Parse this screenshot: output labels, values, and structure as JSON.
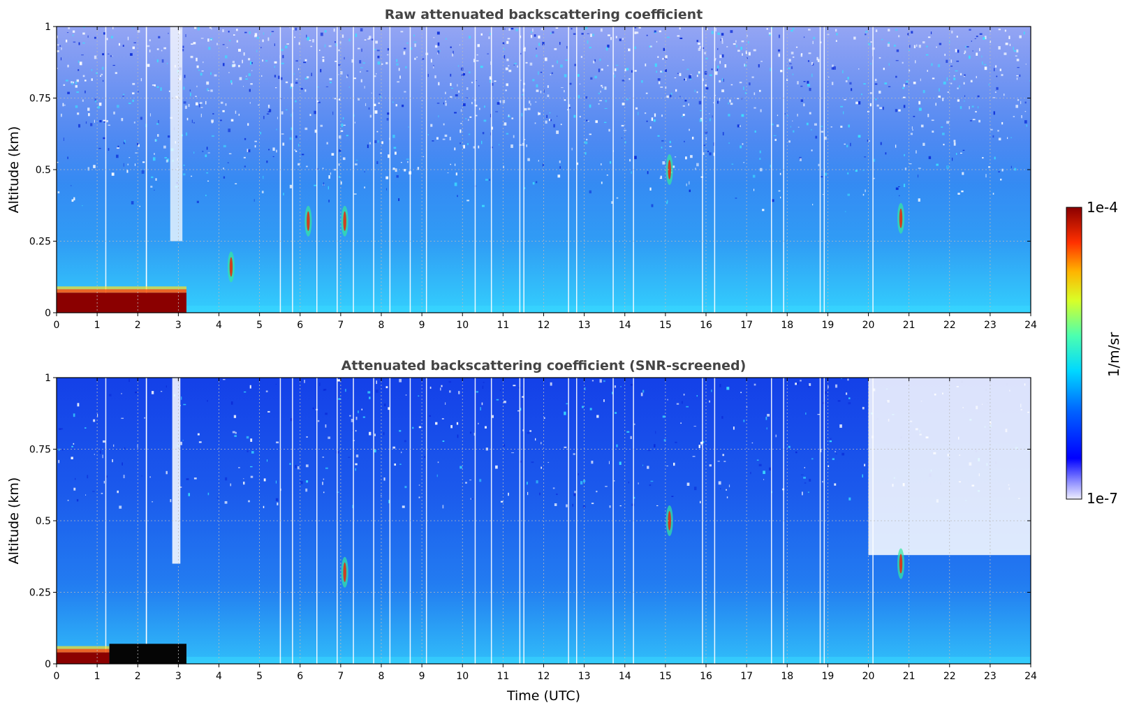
{
  "chart_data": [
    {
      "type": "heatmap",
      "title": "Raw attenuated backscattering coefficient",
      "xlabel": "",
      "ylabel": "Altitude (km)",
      "xlim": [
        0,
        24
      ],
      "ylim": [
        0,
        1
      ],
      "x_ticks": [
        "0",
        "1",
        "2",
        "3",
        "4",
        "5",
        "6",
        "7",
        "8",
        "9",
        "10",
        "11",
        "12",
        "13",
        "14",
        "15",
        "16",
        "17",
        "18",
        "19",
        "20",
        "21",
        "22",
        "23",
        "24"
      ],
      "y_ticks": [
        "0",
        "0.25",
        "0.5",
        "0.75",
        "1"
      ],
      "grid": true,
      "features": [
        {
          "x_range": [
            0,
            3.2
          ],
          "y_range": [
            0,
            0.07
          ],
          "level": "saturated"
        },
        {
          "x_range": [
            2.8,
            3.1
          ],
          "y_range": [
            0.25,
            1.0
          ],
          "level": "noise-white"
        },
        {
          "x": 15.1,
          "y": 0.5,
          "level": "high"
        },
        {
          "x": 20.8,
          "y": 0.33,
          "level": "high"
        },
        {
          "x": 7.1,
          "y": 0.32,
          "level": "high"
        },
        {
          "x": 6.2,
          "y": 0.32,
          "level": "high"
        },
        {
          "x": 4.3,
          "y": 0.16,
          "level": "high"
        }
      ]
    },
    {
      "type": "heatmap",
      "title": "Attenuated backscattering coefficient (SNR-screened)",
      "xlabel": "Time (UTC)",
      "ylabel": "Altitude (km)",
      "xlim": [
        0,
        24
      ],
      "ylim": [
        0,
        1
      ],
      "x_ticks": [
        "0",
        "1",
        "2",
        "3",
        "4",
        "5",
        "6",
        "7",
        "8",
        "9",
        "10",
        "11",
        "12",
        "13",
        "14",
        "15",
        "16",
        "17",
        "18",
        "19",
        "20",
        "21",
        "22",
        "23",
        "24"
      ],
      "y_ticks": [
        "0",
        "0.25",
        "0.5",
        "0.75",
        "1"
      ],
      "grid": true,
      "features": [
        {
          "x_range": [
            0,
            1.3
          ],
          "y_range": [
            0,
            0.04
          ],
          "level": "saturated"
        },
        {
          "x_range": [
            1.3,
            3.2
          ],
          "y_range": [
            0,
            0.07
          ],
          "level": "black"
        },
        {
          "x_range": [
            2.85,
            3.05
          ],
          "y_range": [
            0.35,
            1.0
          ],
          "level": "screened-white"
        },
        {
          "x_range": [
            20.0,
            24
          ],
          "y_range": [
            0.38,
            1.0
          ],
          "level": "screened-white"
        },
        {
          "x": 15.1,
          "y": 0.5,
          "level": "high"
        },
        {
          "x": 20.8,
          "y": 0.35,
          "level": "high"
        },
        {
          "x": 7.1,
          "y": 0.32,
          "level": "high"
        }
      ]
    }
  ],
  "colorbar": {
    "label": "1/m/sr",
    "max_label": "1e-4",
    "min_label": "1e-7",
    "colormap": "jet"
  },
  "colors": {
    "background_blue": "#1a4fef",
    "saturated": "#8b0000",
    "grid": "#bbbbbb"
  }
}
